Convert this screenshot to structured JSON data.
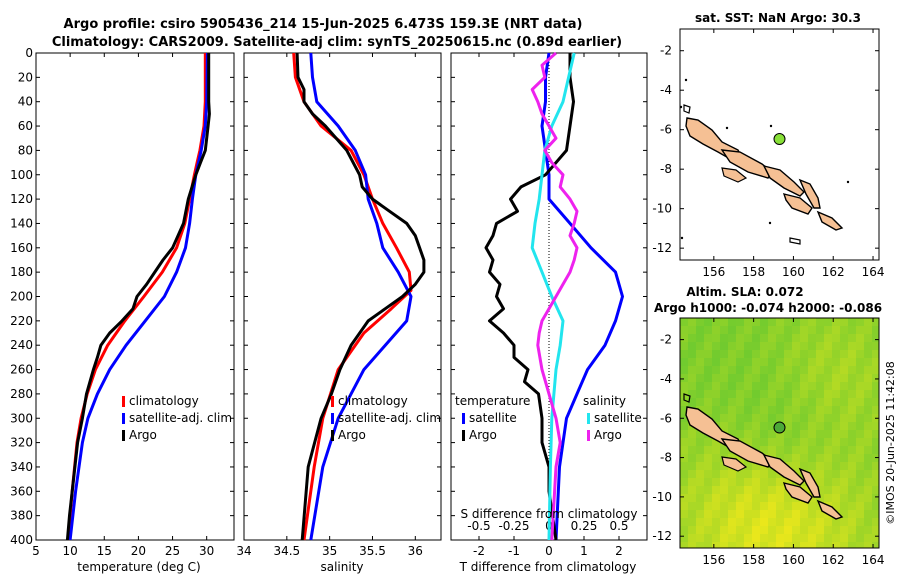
{
  "header": {
    "title_line1": "Argo profile: csiro 5905436_214 15-Jun-2025 6.473S 159.3E (NRT data)",
    "title_line2": "Climatology: CARS2009. Satellite-adj clim: synTS_20250615.nc (0.89d earlier)"
  },
  "colors": {
    "climatology": "#ff0000",
    "satellite": "#0000ff",
    "argo": "#000000",
    "sal_satellite": "#22e5ee",
    "sal_argo": "#ee22ee",
    "land": "#f5c094",
    "marker": "#88e038"
  },
  "watermark": "©IMOS 20-Jun-2025 11:42:08",
  "chart_data": [
    {
      "type": "line",
      "name": "temperature",
      "xlabel": "temperature (deg C)",
      "ylabel": "",
      "xlim": [
        5,
        34
      ],
      "ylim": [
        400,
        0
      ],
      "xticks": [
        5,
        10,
        15,
        20,
        25,
        30
      ],
      "yticks": [
        0,
        20,
        40,
        60,
        80,
        100,
        120,
        140,
        160,
        180,
        200,
        220,
        240,
        260,
        280,
        300,
        320,
        340,
        360,
        380,
        400
      ],
      "legend": [
        "climatology",
        "satellite-adj. clim",
        "Argo"
      ],
      "series": [
        {
          "name": "climatology",
          "color": "#ff0000",
          "depth": [
            0,
            40,
            60,
            80,
            90,
            100,
            120,
            140,
            160,
            180,
            200,
            220,
            240,
            260,
            280,
            300,
            320,
            360,
            400
          ],
          "values": [
            29.8,
            29.8,
            29.6,
            29.0,
            28.6,
            28.2,
            27.5,
            26.8,
            25.6,
            23.5,
            20.8,
            18.0,
            15.5,
            13.7,
            12.5,
            11.6,
            11.0,
            10.3,
            9.7
          ]
        },
        {
          "name": "satellite-adj. clim",
          "color": "#0000ff",
          "depth": [
            0,
            40,
            60,
            80,
            90,
            100,
            120,
            140,
            160,
            180,
            200,
            220,
            240,
            260,
            280,
            300,
            320,
            360,
            400
          ],
          "values": [
            30.1,
            30.0,
            29.8,
            29.2,
            28.8,
            28.4,
            27.9,
            27.5,
            26.9,
            25.6,
            23.8,
            21.0,
            18.2,
            15.8,
            14.0,
            12.6,
            11.8,
            10.8,
            10.0
          ]
        },
        {
          "name": "Argo",
          "color": "#000000",
          "depth": [
            0,
            20,
            40,
            50,
            60,
            80,
            90,
            100,
            120,
            140,
            160,
            170,
            180,
            190,
            200,
            210,
            220,
            230,
            240,
            250,
            260,
            280,
            300,
            320,
            340,
            360,
            380,
            400
          ],
          "values": [
            30.3,
            30.3,
            30.3,
            30.4,
            30.2,
            29.8,
            29.1,
            28.4,
            27.3,
            26.6,
            25.0,
            23.6,
            22.4,
            21.2,
            19.8,
            19.2,
            17.6,
            15.8,
            14.5,
            14.0,
            13.4,
            12.4,
            11.8,
            11.1,
            10.7,
            10.3,
            9.9,
            9.6
          ]
        }
      ]
    },
    {
      "type": "line",
      "name": "salinity",
      "xlabel": "salinity",
      "xlim": [
        34,
        36.3
      ],
      "ylim": [
        400,
        0
      ],
      "xticks": [
        34,
        34.5,
        35,
        35.5,
        36
      ],
      "legend": [
        "climatology",
        "satellite-adj. clim",
        "Argo"
      ],
      "series": [
        {
          "name": "climatology",
          "color": "#ff0000",
          "depth": [
            0,
            20,
            40,
            60,
            80,
            100,
            120,
            140,
            160,
            180,
            195,
            210,
            230,
            260,
            300,
            340,
            400
          ],
          "values": [
            34.58,
            34.6,
            34.7,
            34.9,
            35.25,
            35.4,
            35.5,
            35.62,
            35.78,
            35.93,
            35.95,
            35.72,
            35.4,
            35.1,
            34.92,
            34.82,
            34.7
          ]
        },
        {
          "name": "satellite-adj. clim",
          "color": "#0000ff",
          "depth": [
            0,
            20,
            40,
            60,
            80,
            100,
            120,
            140,
            160,
            180,
            200,
            220,
            240,
            260,
            300,
            340,
            400
          ],
          "values": [
            34.78,
            34.8,
            34.85,
            35.1,
            35.3,
            35.42,
            35.45,
            35.55,
            35.62,
            35.8,
            35.95,
            35.9,
            35.65,
            35.4,
            35.1,
            34.92,
            34.78
          ]
        },
        {
          "name": "Argo",
          "color": "#000000",
          "depth": [
            0,
            20,
            30,
            40,
            50,
            60,
            80,
            100,
            110,
            120,
            130,
            140,
            150,
            160,
            170,
            180,
            190,
            200,
            210,
            220,
            240,
            260,
            280,
            300,
            340,
            400
          ],
          "values": [
            34.62,
            34.63,
            34.7,
            34.7,
            34.8,
            34.95,
            35.2,
            35.35,
            35.38,
            35.5,
            35.7,
            35.9,
            36.0,
            36.05,
            36.1,
            36.1,
            36.0,
            35.85,
            35.65,
            35.45,
            35.25,
            35.12,
            35.02,
            34.9,
            34.75,
            34.68
          ]
        }
      ]
    },
    {
      "type": "line",
      "name": "difference from climatology",
      "xlabel": "T difference from climatology",
      "top_axis_label": "S difference from climatology",
      "xlim": [
        -2.8,
        2.8
      ],
      "ylim": [
        400,
        0
      ],
      "xticks": [
        -2,
        -1,
        0,
        1,
        2
      ],
      "top_xticks": [
        -0.5,
        -0.25,
        0,
        0.25,
        0.5
      ],
      "legend_titles": [
        "temperature",
        "salinity"
      ],
      "legend": [
        "satellite",
        "Argo",
        "satellite",
        "Argo"
      ],
      "series": [
        {
          "name": "temperature satellite",
          "color": "#0000ff",
          "depth": [
            0,
            20,
            40,
            60,
            80,
            100,
            120,
            140,
            160,
            180,
            200,
            220,
            240,
            260,
            280,
            300,
            340,
            400
          ],
          "values": [
            0.0,
            -0.1,
            -0.1,
            -0.2,
            -0.1,
            0.0,
            0.0,
            0.6,
            1.2,
            1.9,
            2.1,
            1.9,
            1.6,
            1.1,
            0.8,
            0.5,
            0.3,
            0.2
          ]
        },
        {
          "name": "temperature Argo",
          "color": "#000000",
          "depth": [
            0,
            20,
            40,
            60,
            80,
            100,
            110,
            120,
            130,
            140,
            150,
            160,
            170,
            180,
            190,
            200,
            210,
            220,
            230,
            240,
            250,
            260,
            270,
            280,
            300,
            320,
            340,
            360,
            380,
            400
          ],
          "values": [
            0.6,
            0.6,
            0.7,
            0.6,
            0.5,
            -0.1,
            -0.8,
            -1.1,
            -0.9,
            -1.5,
            -1.6,
            -1.8,
            -1.6,
            -1.7,
            -1.4,
            -1.5,
            -1.3,
            -1.7,
            -1.3,
            -1.0,
            -1.0,
            -0.6,
            -0.7,
            -0.3,
            -0.2,
            -0.2,
            0.0,
            0.0,
            0.1,
            0.2
          ]
        },
        {
          "name": "salinity satellite",
          "color": "#22e5ee",
          "depth": [
            0,
            20,
            40,
            60,
            80,
            100,
            120,
            140,
            160,
            180,
            200,
            220,
            240,
            260,
            300,
            340,
            400
          ],
          "values": [
            0.18,
            0.14,
            0.1,
            0.02,
            -0.03,
            -0.05,
            -0.07,
            -0.1,
            -0.12,
            -0.05,
            0.02,
            0.1,
            0.08,
            0.05,
            0.02,
            0.01,
            0.0
          ]
        },
        {
          "name": "salinity Argo",
          "color": "#ee22ee",
          "depth": [
            0,
            10,
            20,
            30,
            40,
            50,
            60,
            70,
            80,
            90,
            100,
            110,
            120,
            130,
            140,
            150,
            160,
            170,
            180,
            190,
            200,
            210,
            220,
            230,
            240,
            260,
            280,
            300,
            320,
            340,
            380,
            400
          ],
          "values": [
            0.05,
            -0.05,
            -0.03,
            -0.12,
            -0.08,
            -0.05,
            0.0,
            0.05,
            -0.03,
            0.02,
            0.1,
            0.08,
            0.15,
            0.2,
            0.18,
            0.15,
            0.2,
            0.18,
            0.15,
            0.1,
            0.05,
            0.0,
            -0.05,
            -0.07,
            -0.08,
            -0.05,
            0.0,
            0.05,
            0.08,
            0.05,
            0.03,
            0.02
          ]
        }
      ]
    },
    {
      "type": "map",
      "name": "sst",
      "title": "sat. SST: NaN Argo: 30.3",
      "xticks": [
        156,
        158,
        160,
        162,
        164
      ],
      "yticks": [
        -2,
        -4,
        -6,
        -8,
        -10,
        -12
      ],
      "xlim": [
        154.3,
        164.3
      ],
      "ylim": [
        -12.6,
        -0.9
      ],
      "argo_position": {
        "lon": 159.3,
        "lat": -6.473
      }
    },
    {
      "type": "heatmap",
      "name": "sla",
      "title_line1": "Altim. SLA: 0.072",
      "title_line2": "Argo h1000: -0.074 h2000: -0.086",
      "xticks": [
        156,
        158,
        160,
        162,
        164
      ],
      "yticks": [
        -2,
        -4,
        -6,
        -8,
        -10,
        -12
      ],
      "xlim": [
        154.3,
        164.3
      ],
      "ylim": [
        -12.6,
        -0.9
      ],
      "argo_position": {
        "lon": 159.3,
        "lat": -6.473
      }
    }
  ]
}
